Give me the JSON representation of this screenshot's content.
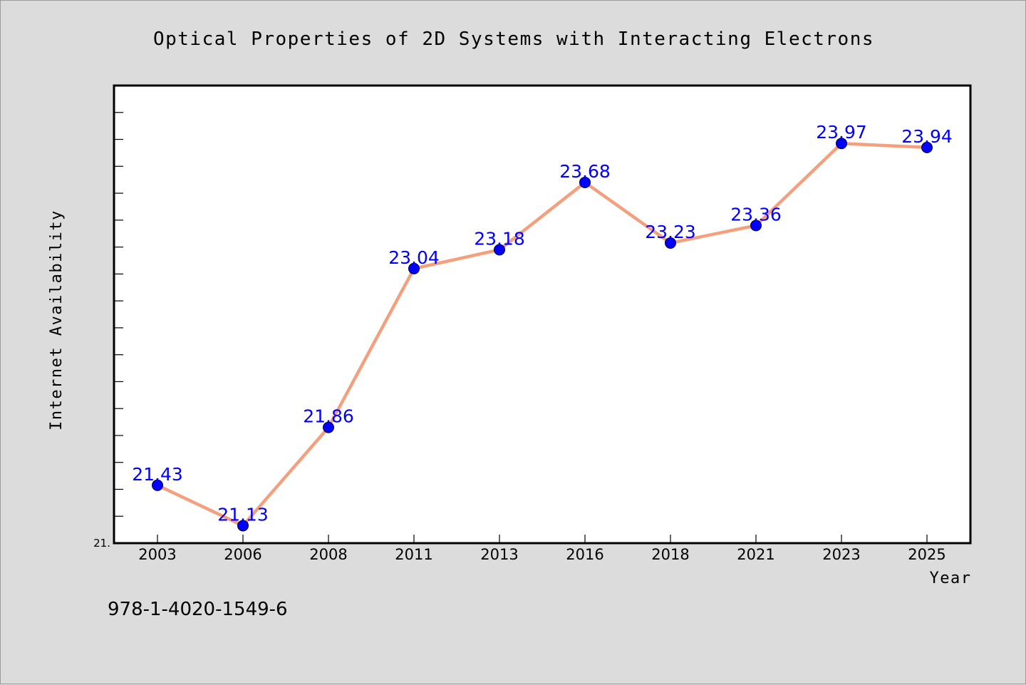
{
  "chart_data": {
    "type": "line",
    "title": "Optical Properties of 2D Systems with Interacting Electrons",
    "xlabel": "Year",
    "ylabel": "Internet Availability",
    "categories": [
      "2003",
      "2006",
      "2008",
      "2011",
      "2013",
      "2016",
      "2018",
      "2021",
      "2023",
      "2025"
    ],
    "values": [
      21.43,
      21.13,
      21.86,
      23.04,
      23.18,
      23.68,
      23.23,
      23.36,
      23.97,
      23.94
    ],
    "data_labels": [
      "21.43",
      "21.13",
      "21.86",
      "23.04",
      "23.18",
      "23.68",
      "23.23",
      "23.36",
      "23.97",
      "23.94"
    ],
    "ymin_label": "21.",
    "ylim": [
      21.0,
      24.4
    ],
    "grid": false,
    "legend": false,
    "colors": {
      "line": "#f4a07e",
      "marker": "#0000ff",
      "data_label": "#0000ff",
      "background": "#dcdcdc",
      "plot_background": "#ffffff"
    }
  },
  "footer": {
    "isbn": "978-1-4020-1549-6"
  }
}
